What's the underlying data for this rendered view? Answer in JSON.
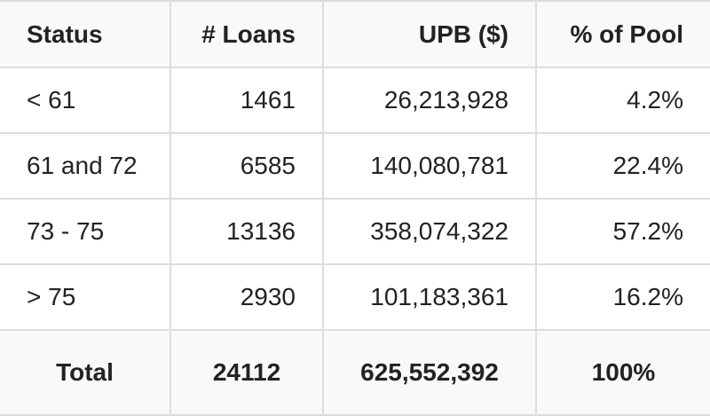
{
  "table": {
    "headers": [
      "Status",
      "# Loans",
      "UPB ($)",
      "% of Pool"
    ],
    "rows": [
      {
        "status": "< 61",
        "loans": "1461",
        "upb": "26,213,928",
        "pct": "4.2%"
      },
      {
        "status": "61 and 72",
        "loans": "6585",
        "upb": "140,080,781",
        "pct": "22.4%"
      },
      {
        "status": "73 - 75",
        "loans": "13136",
        "upb": "358,074,322",
        "pct": "57.2%"
      },
      {
        "status": "> 75",
        "loans": "2930",
        "upb": "101,183,361",
        "pct": "16.2%"
      }
    ],
    "total": {
      "label": "Total",
      "loans": "24112",
      "upb": "625,552,392",
      "pct": "100%"
    }
  }
}
